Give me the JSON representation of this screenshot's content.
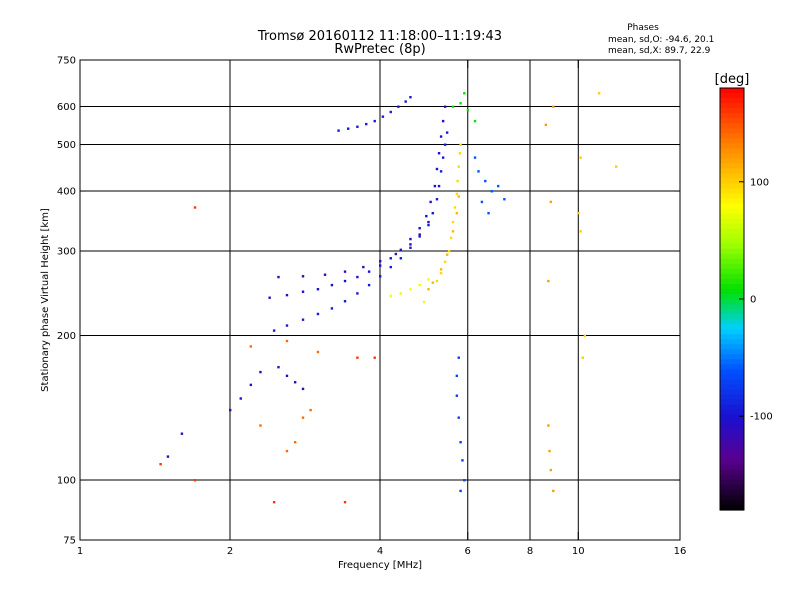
{
  "chart_data": {
    "type": "scatter",
    "title": "Tromsø 20160112 11:18:00–11:19:43",
    "subtitle": "RwPretec (8p)",
    "legend_title": "Phases",
    "stats": [
      "mean, sd,O: -94.6, 20.1",
      "mean, sd,X:  89.7, 22.9"
    ],
    "xlabel": "Frequency [MHz]",
    "ylabel": "Stationary phase Virtual Height [km]",
    "x_scale": "log",
    "y_scale": "log",
    "xlim": [
      1,
      16
    ],
    "ylim": [
      75,
      750
    ],
    "x_ticks": [
      1,
      2,
      4,
      6,
      8,
      10,
      16
    ],
    "y_ticks": [
      75,
      100,
      200,
      300,
      400,
      500,
      600,
      750
    ],
    "x_grid": [
      2,
      4,
      6,
      8,
      10
    ],
    "y_grid": [
      100,
      200,
      300,
      400,
      500,
      600
    ],
    "grid": true,
    "colorbar": {
      "label": "[deg]",
      "ticks": [
        100,
        0,
        -100
      ],
      "range": [
        -180,
        180
      ],
      "placement": "right"
    },
    "series": [
      {
        "points": [
          [
            3.3,
            535
          ],
          [
            3.45,
            540
          ],
          [
            3.6,
            545
          ],
          [
            3.75,
            552
          ],
          [
            3.9,
            560
          ],
          [
            4.05,
            572
          ],
          [
            4.2,
            585
          ],
          [
            4.35,
            600
          ],
          [
            4.5,
            615
          ],
          [
            4.6,
            628
          ]
        ],
        "phase": -95
      },
      {
        "points": [
          [
            2.45,
            205
          ],
          [
            2.6,
            210
          ],
          [
            2.8,
            216
          ],
          [
            3.0,
            222
          ],
          [
            3.2,
            228
          ],
          [
            3.4,
            236
          ],
          [
            3.6,
            245
          ],
          [
            3.8,
            255
          ],
          [
            4.0,
            266
          ],
          [
            4.2,
            278
          ],
          [
            4.4,
            290
          ],
          [
            4.6,
            305
          ],
          [
            4.8,
            322
          ],
          [
            5.0,
            340
          ],
          [
            5.1,
            360
          ],
          [
            5.2,
            385
          ],
          [
            5.25,
            410
          ],
          [
            5.3,
            440
          ],
          [
            5.35,
            470
          ],
          [
            5.4,
            500
          ],
          [
            5.45,
            530
          ]
        ],
        "phase": -95
      },
      {
        "points": [
          [
            2.4,
            240
          ],
          [
            2.6,
            243
          ],
          [
            2.8,
            247
          ],
          [
            3.0,
            250
          ],
          [
            3.2,
            255
          ],
          [
            3.4,
            260
          ],
          [
            3.6,
            265
          ],
          [
            3.8,
            272
          ],
          [
            4.0,
            280
          ],
          [
            4.2,
            290
          ],
          [
            4.4,
            302
          ],
          [
            4.6,
            318
          ],
          [
            4.8,
            335
          ],
          [
            4.95,
            355
          ],
          [
            5.05,
            380
          ],
          [
            5.15,
            410
          ],
          [
            5.2,
            445
          ],
          [
            5.25,
            480
          ],
          [
            5.3,
            520
          ],
          [
            5.35,
            560
          ],
          [
            5.4,
            600
          ]
        ],
        "phase": -100
      },
      {
        "points": [
          [
            2.5,
            265
          ],
          [
            2.8,
            266
          ],
          [
            3.1,
            268
          ],
          [
            3.4,
            272
          ],
          [
            3.7,
            278
          ],
          [
            4.0,
            286
          ],
          [
            4.3,
            296
          ],
          [
            4.6,
            310
          ],
          [
            4.8,
            325
          ],
          [
            5.0,
            345
          ]
        ],
        "phase": -120
      },
      {
        "points": [
          [
            2.0,
            140
          ],
          [
            2.1,
            148
          ],
          [
            2.2,
            158
          ],
          [
            2.3,
            168
          ],
          [
            2.5,
            172
          ],
          [
            2.6,
            165
          ],
          [
            2.7,
            160
          ],
          [
            2.8,
            155
          ],
          [
            1.6,
            125
          ],
          [
            1.5,
            112
          ]
        ],
        "phase": -110
      },
      {
        "points": [
          [
            5.2,
            260
          ],
          [
            5.3,
            270
          ],
          [
            5.4,
            285
          ],
          [
            5.5,
            300
          ],
          [
            5.55,
            320
          ],
          [
            5.6,
            345
          ],
          [
            5.65,
            370
          ],
          [
            5.7,
            395
          ],
          [
            5.72,
            420
          ],
          [
            5.75,
            450
          ],
          [
            5.78,
            480
          ],
          [
            5.8,
            500
          ]
        ],
        "phase": 95
      },
      {
        "points": [
          [
            5.0,
            250
          ],
          [
            5.1,
            258
          ],
          [
            5.3,
            275
          ],
          [
            5.45,
            295
          ],
          [
            5.6,
            330
          ],
          [
            5.7,
            360
          ],
          [
            5.75,
            390
          ]
        ],
        "phase": 110
      },
      {
        "points": [
          [
            4.6,
            250
          ],
          [
            4.8,
            255
          ],
          [
            5.0,
            262
          ],
          [
            4.4,
            245
          ],
          [
            4.2,
            242
          ],
          [
            4.9,
            235
          ]
        ],
        "phase": 75
      },
      {
        "points": [
          [
            6.3,
            440
          ],
          [
            6.5,
            420
          ],
          [
            6.7,
            400
          ],
          [
            6.9,
            410
          ],
          [
            7.1,
            385
          ],
          [
            6.6,
            360
          ],
          [
            6.4,
            380
          ],
          [
            6.2,
            470
          ]
        ],
        "phase": -60
      },
      {
        "points": [
          [
            5.6,
            600
          ],
          [
            5.8,
            610
          ],
          [
            6.0,
            590
          ],
          [
            6.2,
            560
          ],
          [
            5.9,
            640
          ]
        ],
        "phase": 10
      },
      {
        "points": [
          [
            5.7,
            150
          ],
          [
            5.75,
            135
          ],
          [
            5.8,
            120
          ],
          [
            5.85,
            110
          ],
          [
            5.9,
            100
          ],
          [
            5.7,
            165
          ],
          [
            5.75,
            180
          ],
          [
            5.8,
            95
          ]
        ],
        "phase": -70
      },
      {
        "points": [
          [
            8.7,
            130
          ],
          [
            8.75,
            115
          ],
          [
            8.8,
            105
          ],
          [
            8.9,
            95
          ],
          [
            8.7,
            260
          ],
          [
            8.8,
            380
          ],
          [
            8.6,
            550
          ],
          [
            8.9,
            600
          ]
        ],
        "phase": 120
      },
      {
        "points": [
          [
            10.0,
            360
          ],
          [
            10.1,
            330
          ],
          [
            10.2,
            180
          ],
          [
            10.3,
            200
          ],
          [
            10.1,
            470
          ],
          [
            11.0,
            640
          ],
          [
            11.9,
            450
          ]
        ],
        "phase": 100
      },
      {
        "points": [
          [
            2.6,
            115
          ],
          [
            2.7,
            120
          ],
          [
            2.8,
            135
          ],
          [
            2.3,
            130
          ],
          [
            2.2,
            190
          ],
          [
            2.6,
            195
          ],
          [
            2.9,
            140
          ],
          [
            3.0,
            185
          ]
        ],
        "phase": 140
      },
      {
        "points": [
          [
            1.45,
            108
          ],
          [
            1.7,
            100
          ],
          [
            1.7,
            370
          ],
          [
            2.45,
            90
          ],
          [
            3.4,
            90
          ],
          [
            3.6,
            180
          ],
          [
            3.9,
            180
          ]
        ],
        "phase": 160
      }
    ]
  }
}
